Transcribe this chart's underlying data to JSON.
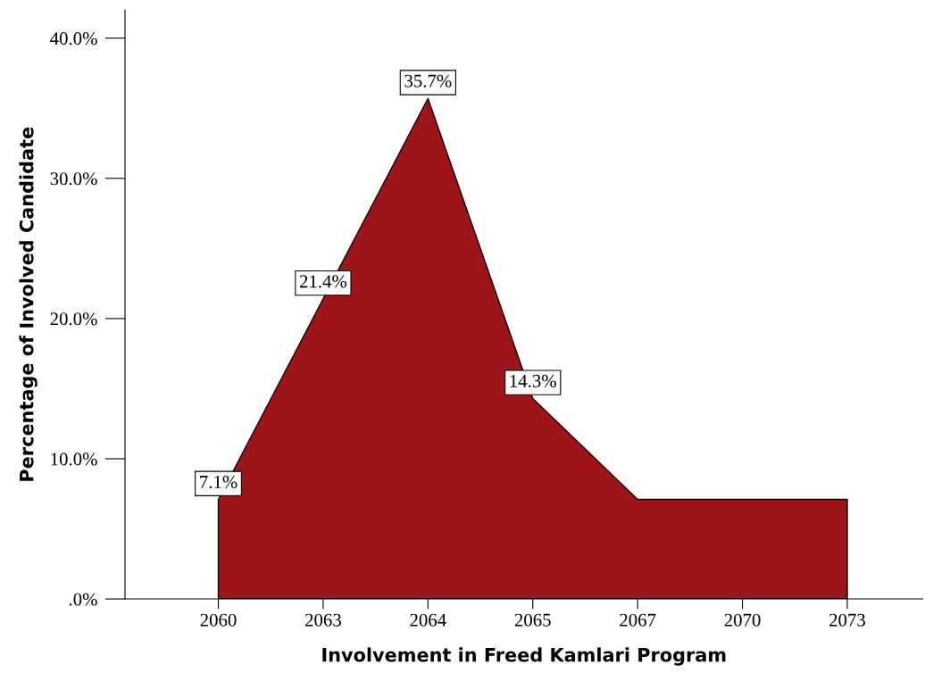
{
  "chart_data": {
    "type": "area",
    "xlabel": "Involvement in Freed Kamlari Program",
    "ylabel": "Percentage of Involved Candidate",
    "categories": [
      "2060",
      "2063",
      "2064",
      "2065",
      "2067",
      "2070",
      "2073"
    ],
    "values": [
      7.1,
      21.4,
      35.7,
      14.3,
      7.1,
      7.1,
      7.1
    ],
    "value_labels": [
      "7.1%",
      "21.4%",
      "35.7%",
      "14.3%",
      null,
      null,
      null
    ],
    "color": "#9e1519",
    "ylim": [
      0,
      42
    ],
    "yticks": [
      {
        "value": 0,
        "label": ".0%"
      },
      {
        "value": 10,
        "label": "10.0%"
      },
      {
        "value": 20,
        "label": "20.0%"
      },
      {
        "value": 30,
        "label": "30.0%"
      },
      {
        "value": 40,
        "label": "40.0%"
      }
    ],
    "grid": false,
    "legend": false
  }
}
